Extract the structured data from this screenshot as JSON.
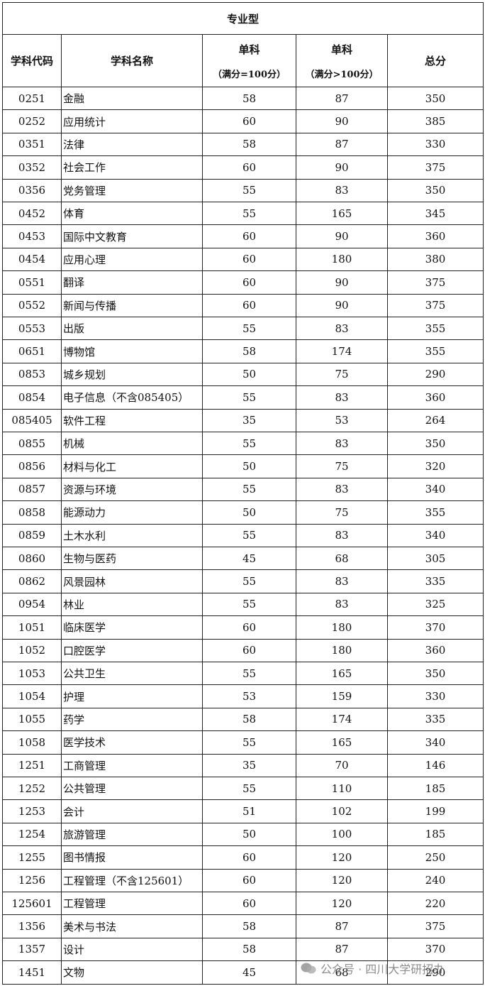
{
  "table": {
    "title": "专业型",
    "header": [
      {
        "label": "学科代码"
      },
      {
        "label": "学科名称"
      },
      {
        "label": "单科",
        "sub": "（满分=100分）"
      },
      {
        "label": "单科",
        "sub": "（满分>100分）"
      },
      {
        "label": "总分"
      }
    ],
    "rows": [
      [
        "0251",
        "金融",
        58,
        87,
        350
      ],
      [
        "0252",
        "应用统计",
        60,
        90,
        385
      ],
      [
        "0351",
        "法律",
        58,
        87,
        330
      ],
      [
        "0352",
        "社会工作",
        60,
        90,
        375
      ],
      [
        "0356",
        "党务管理",
        55,
        83,
        350
      ],
      [
        "0452",
        "体育",
        55,
        165,
        345
      ],
      [
        "0453",
        "国际中文教育",
        60,
        90,
        360
      ],
      [
        "0454",
        "应用心理",
        60,
        180,
        380
      ],
      [
        "0551",
        "翻译",
        60,
        90,
        375
      ],
      [
        "0552",
        "新闻与传播",
        60,
        90,
        375
      ],
      [
        "0553",
        "出版",
        55,
        83,
        355
      ],
      [
        "0651",
        "博物馆",
        58,
        174,
        355
      ],
      [
        "0853",
        "城乡规划",
        50,
        75,
        290
      ],
      [
        "0854",
        "电子信息（不含085405）",
        55,
        83,
        360
      ],
      [
        "085405",
        "软件工程",
        35,
        53,
        264
      ],
      [
        "0855",
        "机械",
        55,
        83,
        350
      ],
      [
        "0856",
        "材料与化工",
        50,
        75,
        320
      ],
      [
        "0857",
        "资源与环境",
        55,
        83,
        340
      ],
      [
        "0858",
        "能源动力",
        50,
        75,
        355
      ],
      [
        "0859",
        "土木水利",
        55,
        83,
        340
      ],
      [
        "0860",
        "生物与医药",
        45,
        68,
        305
      ],
      [
        "0862",
        "风景园林",
        55,
        83,
        335
      ],
      [
        "0954",
        "林业",
        55,
        83,
        325
      ],
      [
        "1051",
        "临床医学",
        60,
        180,
        370
      ],
      [
        "1052",
        "口腔医学",
        60,
        180,
        360
      ],
      [
        "1053",
        "公共卫生",
        55,
        165,
        350
      ],
      [
        "1054",
        "护理",
        53,
        159,
        330
      ],
      [
        "1055",
        "药学",
        58,
        174,
        335
      ],
      [
        "1058",
        "医学技术",
        55,
        165,
        340
      ],
      [
        "1251",
        "工商管理",
        35,
        70,
        146
      ],
      [
        "1252",
        "公共管理",
        55,
        110,
        185
      ],
      [
        "1253",
        "会计",
        51,
        102,
        199
      ],
      [
        "1254",
        "旅游管理",
        50,
        100,
        185
      ],
      [
        "1255",
        "图书情报",
        60,
        120,
        250
      ],
      [
        "1256",
        "工程管理（不含125601）",
        60,
        120,
        240
      ],
      [
        "125601",
        "工程管理",
        60,
        120,
        220
      ],
      [
        "1356",
        "美术与书法",
        58,
        87,
        375
      ],
      [
        "1357",
        "设计",
        58,
        87,
        370
      ],
      [
        "1451",
        "文物",
        45,
        68,
        290
      ]
    ]
  },
  "watermark": "公众号 · 四川大学研招办"
}
